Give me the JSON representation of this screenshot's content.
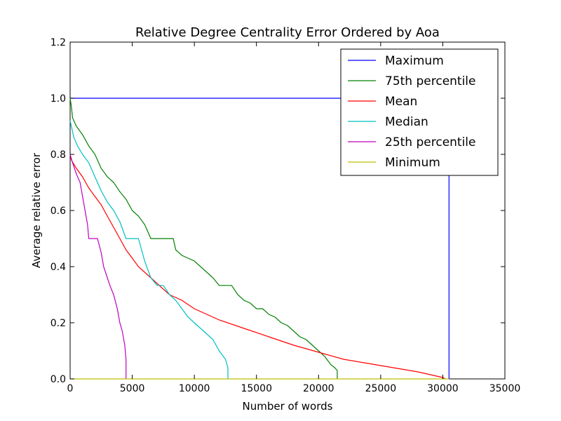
{
  "chart_data": {
    "type": "line",
    "title": "Relative Degree Centrality Error Ordered by Aoa",
    "xlabel": "Number of words",
    "ylabel": "Average relative error",
    "xlim": [
      0,
      35000
    ],
    "ylim": [
      0,
      1.2
    ],
    "xticks": [
      "0",
      "5000",
      "10000",
      "15000",
      "20000",
      "25000",
      "30000",
      "35000"
    ],
    "yticks": [
      "0.0",
      "0.2",
      "0.4",
      "0.6",
      "0.8",
      "1.0",
      "1.2"
    ],
    "grid": false,
    "legend_position": "top-right",
    "series": [
      {
        "name": "Maximum",
        "color": "#0000ff",
        "points": [
          [
            0,
            1.0
          ],
          [
            30500,
            1.0
          ],
          [
            30500,
            0.0
          ]
        ]
      },
      {
        "name": "75th percentile",
        "color": "#008000",
        "points": [
          [
            0,
            1.0
          ],
          [
            100,
            0.97
          ],
          [
            200,
            0.93
          ],
          [
            500,
            0.9
          ],
          [
            1000,
            0.87
          ],
          [
            1500,
            0.83
          ],
          [
            2000,
            0.8
          ],
          [
            2500,
            0.75
          ],
          [
            3000,
            0.72
          ],
          [
            3500,
            0.7
          ],
          [
            4000,
            0.667
          ],
          [
            4500,
            0.64
          ],
          [
            5000,
            0.6
          ],
          [
            5500,
            0.58
          ],
          [
            6000,
            0.55
          ],
          [
            6500,
            0.5
          ],
          [
            8000,
            0.5
          ],
          [
            8300,
            0.5
          ],
          [
            8500,
            0.46
          ],
          [
            9000,
            0.44
          ],
          [
            9500,
            0.43
          ],
          [
            10000,
            0.42
          ],
          [
            10500,
            0.4
          ],
          [
            11000,
            0.38
          ],
          [
            11500,
            0.36
          ],
          [
            12000,
            0.333
          ],
          [
            13000,
            0.333
          ],
          [
            13500,
            0.3
          ],
          [
            14000,
            0.28
          ],
          [
            14500,
            0.27
          ],
          [
            15000,
            0.25
          ],
          [
            15500,
            0.25
          ],
          [
            16000,
            0.23
          ],
          [
            16500,
            0.22
          ],
          [
            17000,
            0.2
          ],
          [
            17500,
            0.19
          ],
          [
            18000,
            0.17
          ],
          [
            18500,
            0.15
          ],
          [
            19000,
            0.14
          ],
          [
            19500,
            0.12
          ],
          [
            20000,
            0.1
          ],
          [
            20500,
            0.08
          ],
          [
            21000,
            0.05
          ],
          [
            21300,
            0.04
          ],
          [
            21500,
            0.03
          ],
          [
            21500,
            0.0
          ]
        ]
      },
      {
        "name": "Mean",
        "color": "#ff0000",
        "points": [
          [
            0,
            0.8
          ],
          [
            100,
            0.78
          ],
          [
            500,
            0.75
          ],
          [
            1000,
            0.72
          ],
          [
            1500,
            0.68
          ],
          [
            2000,
            0.65
          ],
          [
            2500,
            0.62
          ],
          [
            3000,
            0.58
          ],
          [
            3500,
            0.54
          ],
          [
            4000,
            0.5
          ],
          [
            4500,
            0.46
          ],
          [
            5000,
            0.43
          ],
          [
            5500,
            0.4
          ],
          [
            6000,
            0.38
          ],
          [
            7000,
            0.34
          ],
          [
            8000,
            0.3
          ],
          [
            9000,
            0.28
          ],
          [
            10000,
            0.25
          ],
          [
            11000,
            0.23
          ],
          [
            12000,
            0.21
          ],
          [
            14000,
            0.18
          ],
          [
            16000,
            0.15
          ],
          [
            18000,
            0.12
          ],
          [
            20000,
            0.095
          ],
          [
            22000,
            0.07
          ],
          [
            24000,
            0.055
          ],
          [
            26000,
            0.04
          ],
          [
            28000,
            0.025
          ],
          [
            30000,
            0.005
          ],
          [
            30200,
            0.0
          ]
        ]
      },
      {
        "name": "Median",
        "color": "#00bfbf",
        "points": [
          [
            0,
            0.92
          ],
          [
            100,
            0.9
          ],
          [
            300,
            0.86
          ],
          [
            600,
            0.83
          ],
          [
            1000,
            0.8
          ],
          [
            1500,
            0.77
          ],
          [
            2000,
            0.72
          ],
          [
            2500,
            0.67
          ],
          [
            3000,
            0.63
          ],
          [
            3500,
            0.6
          ],
          [
            4000,
            0.56
          ],
          [
            4500,
            0.5
          ],
          [
            5500,
            0.5
          ],
          [
            6000,
            0.42
          ],
          [
            6500,
            0.36
          ],
          [
            7000,
            0.333
          ],
          [
            7500,
            0.333
          ],
          [
            8000,
            0.3
          ],
          [
            8500,
            0.28
          ],
          [
            9000,
            0.25
          ],
          [
            9500,
            0.22
          ],
          [
            10000,
            0.2
          ],
          [
            10500,
            0.18
          ],
          [
            11000,
            0.16
          ],
          [
            11500,
            0.14
          ],
          [
            12000,
            0.1
          ],
          [
            12500,
            0.07
          ],
          [
            12700,
            0.04
          ],
          [
            12700,
            0.0
          ]
        ]
      },
      {
        "name": "25th percentile",
        "color": "#bf00bf",
        "points": [
          [
            0,
            0.8
          ],
          [
            200,
            0.77
          ],
          [
            500,
            0.73
          ],
          [
            800,
            0.7
          ],
          [
            1000,
            0.65
          ],
          [
            1200,
            0.6
          ],
          [
            1400,
            0.55
          ],
          [
            1500,
            0.5
          ],
          [
            2200,
            0.5
          ],
          [
            2500,
            0.45
          ],
          [
            2700,
            0.4
          ],
          [
            3000,
            0.36
          ],
          [
            3200,
            0.333
          ],
          [
            3500,
            0.3
          ],
          [
            3800,
            0.25
          ],
          [
            4000,
            0.2
          ],
          [
            4200,
            0.17
          ],
          [
            4400,
            0.12
          ],
          [
            4500,
            0.07
          ],
          [
            4500,
            0.0
          ]
        ]
      },
      {
        "name": "Minimum",
        "color": "#bfbf00",
        "points": [
          [
            0,
            0.0
          ],
          [
            30500,
            0.0
          ]
        ]
      }
    ]
  }
}
